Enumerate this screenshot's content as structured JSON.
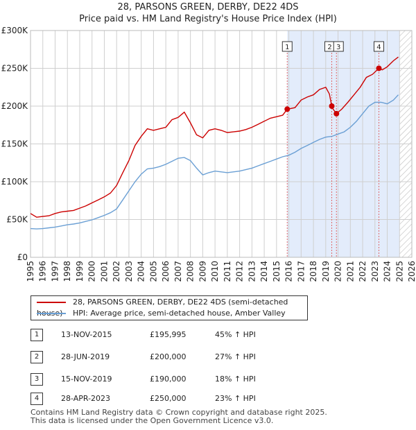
{
  "title": {
    "line1": "28, PARSONS GREEN, DERBY, DE22 4DS",
    "line2": "Price paid vs. HM Land Registry's House Price Index (HPI)"
  },
  "legend": {
    "property": "28, PARSONS GREEN, DERBY, DE22 4DS (semi-detached house)",
    "hpi": "HPI: Average price, semi-detached house, Amber Valley"
  },
  "colors": {
    "property": "#cc0000",
    "hpi": "#6a9fd4",
    "shade": "#e3ecfb",
    "grid": "#cfcfcf",
    "marker_line": "#e06666"
  },
  "sales": [
    {
      "num": "1",
      "date": "13-NOV-2015",
      "price": "£195,995",
      "hpi": "45% ↑ HPI"
    },
    {
      "num": "2",
      "date": "28-JUN-2019",
      "price": "£200,000",
      "hpi": "27% ↑ HPI"
    },
    {
      "num": "3",
      "date": "15-NOV-2019",
      "price": "£190,000",
      "hpi": "18% ↑ HPI"
    },
    {
      "num": "4",
      "date": "28-APR-2023",
      "price": "£250,000",
      "hpi": "23% ↑ HPI"
    }
  ],
  "footer": {
    "line1": "Contains HM Land Registry data © Crown copyright and database right 2025.",
    "line2": "This data is licensed under the Open Government Licence v3.0."
  },
  "chart_data": {
    "type": "line",
    "title": "28, PARSONS GREEN, DERBY, DE22 4DS — Price paid vs. HM Land Registry's House Price Index (HPI)",
    "xlabel": "",
    "ylabel": "",
    "xlim": [
      1995,
      2026
    ],
    "ylim": [
      0,
      300000
    ],
    "x_ticks": [
      "1995",
      "1996",
      "1997",
      "1998",
      "1999",
      "2000",
      "2001",
      "2002",
      "2003",
      "2004",
      "2005",
      "2006",
      "2007",
      "2008",
      "2009",
      "2010",
      "2011",
      "2012",
      "2013",
      "2014",
      "2015",
      "2016",
      "2017",
      "2018",
      "2019",
      "2020",
      "2021",
      "2022",
      "2023",
      "2024",
      "2025",
      "2026"
    ],
    "y_ticks": [
      {
        "value": 0,
        "label": "£0"
      },
      {
        "value": 50000,
        "label": "£50K"
      },
      {
        "value": 100000,
        "label": "£100K"
      },
      {
        "value": 150000,
        "label": "£150K"
      },
      {
        "value": 200000,
        "label": "£200K"
      },
      {
        "value": 250000,
        "label": "£250K"
      },
      {
        "value": 300000,
        "label": "£300K"
      }
    ],
    "grid": true,
    "shaded_range": [
      2015.87,
      2025.0
    ],
    "hatched_from": 2025.0,
    "series": [
      {
        "name": "28, PARSONS GREEN, DERBY, DE22 4DS (semi-detached house)",
        "x": [
          1995.0,
          1995.5,
          1996.0,
          1996.5,
          1997.0,
          1997.5,
          1998.0,
          1998.5,
          1999.0,
          1999.5,
          2000.0,
          2000.5,
          2001.0,
          2001.5,
          2002.0,
          2002.5,
          2003.0,
          2003.5,
          2004.0,
          2004.5,
          2005.0,
          2005.5,
          2006.0,
          2006.5,
          2007.0,
          2007.5,
          2008.0,
          2008.5,
          2009.0,
          2009.5,
          2010.0,
          2010.5,
          2011.0,
          2011.5,
          2012.0,
          2012.5,
          2013.0,
          2013.5,
          2014.0,
          2014.5,
          2015.0,
          2015.5,
          2015.87,
          2016.5,
          2017.0,
          2017.5,
          2018.0,
          2018.5,
          2019.0,
          2019.3,
          2019.49,
          2019.6,
          2019.87,
          2020.3,
          2020.8,
          2021.3,
          2021.8,
          2022.3,
          2022.8,
          2023.32,
          2023.6,
          2024.0,
          2024.5,
          2024.9
        ],
        "values": [
          58000,
          53000,
          54000,
          55000,
          58000,
          60000,
          61000,
          62000,
          65000,
          68000,
          72000,
          76000,
          80000,
          85000,
          95000,
          112000,
          128000,
          148000,
          160000,
          170000,
          168000,
          170000,
          172000,
          182000,
          185000,
          192000,
          178000,
          162000,
          158000,
          168000,
          170000,
          168000,
          165000,
          166000,
          167000,
          169000,
          172000,
          176000,
          180000,
          184000,
          186000,
          188000,
          195995,
          198000,
          208000,
          212000,
          215000,
          222000,
          225000,
          216000,
          200000,
          196000,
          190000,
          196000,
          205000,
          215000,
          225000,
          238000,
          242000,
          250000,
          248000,
          252000,
          260000,
          265000
        ]
      },
      {
        "name": "HPI: Average price, semi-detached house, Amber Valley",
        "x": [
          1995.0,
          1995.5,
          1996.0,
          1996.5,
          1997.0,
          1997.5,
          1998.0,
          1998.5,
          1999.0,
          1999.5,
          2000.0,
          2000.5,
          2001.0,
          2001.5,
          2002.0,
          2002.5,
          2003.0,
          2003.5,
          2004.0,
          2004.5,
          2005.0,
          2005.5,
          2006.0,
          2006.5,
          2007.0,
          2007.5,
          2008.0,
          2008.5,
          2009.0,
          2009.5,
          2010.0,
          2010.5,
          2011.0,
          2011.5,
          2012.0,
          2012.5,
          2013.0,
          2013.5,
          2014.0,
          2014.5,
          2015.0,
          2015.5,
          2016.0,
          2016.5,
          2017.0,
          2017.5,
          2018.0,
          2018.5,
          2019.0,
          2019.5,
          2020.0,
          2020.5,
          2021.0,
          2021.5,
          2022.0,
          2022.5,
          2023.0,
          2023.5,
          2024.0,
          2024.5,
          2024.9
        ],
        "values": [
          38000,
          37500,
          38000,
          39000,
          40000,
          41500,
          43000,
          44000,
          45500,
          47500,
          49500,
          52500,
          55500,
          59000,
          64000,
          76000,
          88000,
          100000,
          110000,
          117000,
          118000,
          120000,
          123000,
          127000,
          131000,
          132000,
          128000,
          118000,
          109000,
          112000,
          114000,
          113000,
          112000,
          113000,
          114000,
          116000,
          118000,
          121000,
          124000,
          127000,
          130000,
          133000,
          135000,
          139000,
          144000,
          148000,
          152000,
          156000,
          159000,
          160000,
          163000,
          166000,
          172000,
          180000,
          190000,
          200000,
          205000,
          205000,
          203000,
          208000,
          215000
        ]
      }
    ],
    "sale_points": [
      {
        "label": "1",
        "x": 2015.87,
        "value": 195995
      },
      {
        "label": "2",
        "x": 2019.49,
        "value": 200000
      },
      {
        "label": "3",
        "x": 2019.87,
        "value": 190000
      },
      {
        "label": "4",
        "x": 2023.32,
        "value": 250000
      }
    ]
  }
}
